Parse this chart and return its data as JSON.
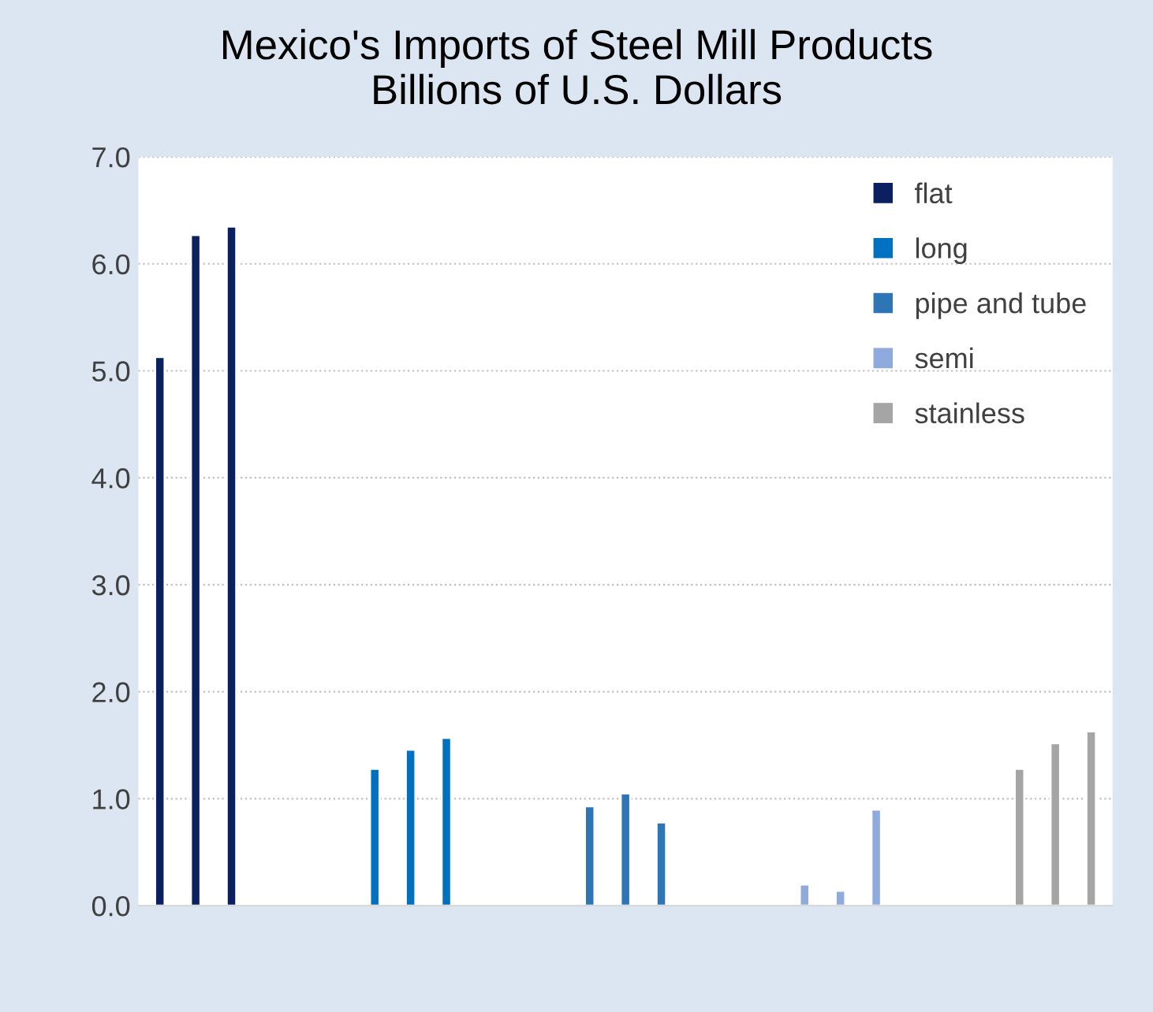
{
  "chart_data": {
    "type": "bar",
    "title": "Mexico's Imports of Steel Mill Products\nBillions of U.S. Dollars",
    "categories": [
      null,
      null,
      null,
      null,
      null,
      null,
      null,
      null,
      null,
      null,
      null,
      null,
      null,
      null,
      null,
      null,
      null,
      null,
      null,
      null,
      null,
      null,
      null,
      null,
      null,
      null,
      null
    ],
    "series": [
      {
        "name": "flat",
        "color": "#0b2060",
        "values": [
          5.13,
          6.27,
          6.35,
          null,
          null,
          null,
          null,
          null,
          null,
          null,
          null,
          null,
          null,
          null,
          null,
          null,
          null,
          null,
          null,
          null,
          null,
          null,
          null,
          null,
          null,
          null,
          null
        ]
      },
      {
        "name": "long",
        "color": "#0070c0",
        "values": [
          null,
          null,
          null,
          null,
          null,
          null,
          1.28,
          1.46,
          1.57,
          null,
          null,
          null,
          null,
          null,
          null,
          null,
          null,
          null,
          null,
          null,
          null,
          null,
          null,
          null,
          null,
          null,
          null
        ]
      },
      {
        "name": "pipe and tube",
        "color": "#2e75b6",
        "values": [
          null,
          null,
          null,
          null,
          null,
          null,
          null,
          null,
          null,
          null,
          null,
          null,
          0.93,
          1.05,
          0.78,
          null,
          null,
          null,
          null,
          null,
          null,
          null,
          null,
          null,
          null,
          null,
          null
        ]
      },
      {
        "name": "semi",
        "color": "#8faadc",
        "values": [
          null,
          null,
          null,
          null,
          null,
          null,
          null,
          null,
          null,
          null,
          null,
          null,
          null,
          null,
          null,
          null,
          null,
          null,
          0.2,
          0.14,
          0.9,
          null,
          null,
          null,
          null,
          null,
          null
        ]
      },
      {
        "name": "stainless",
        "color": "#a5a5a5",
        "values": [
          null,
          null,
          null,
          null,
          null,
          null,
          null,
          null,
          null,
          null,
          null,
          null,
          null,
          null,
          null,
          null,
          null,
          null,
          null,
          null,
          null,
          null,
          null,
          null,
          1.28,
          1.52,
          1.63
        ]
      }
    ],
    "ylim": [
      0,
      7
    ],
    "yticks": [
      {
        "value": 0,
        "label": "0.0"
      },
      {
        "value": 1,
        "label": "1.0"
      },
      {
        "value": 2,
        "label": "2.0"
      },
      {
        "value": 3,
        "label": "3.0"
      },
      {
        "value": 4,
        "label": "4.0"
      },
      {
        "value": 5,
        "label": "5.0"
      },
      {
        "value": 6,
        "label": "6.0"
      },
      {
        "value": 7,
        "label": "7.0"
      }
    ],
    "grid": "y",
    "legend": "top right"
  }
}
